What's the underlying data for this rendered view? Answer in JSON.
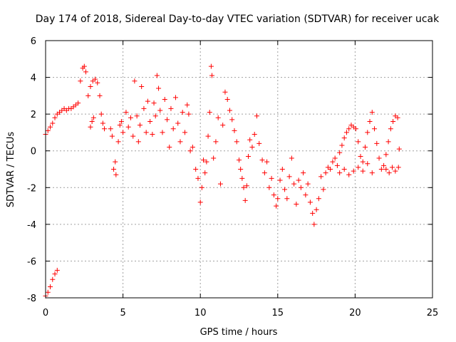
{
  "chart_data": {
    "type": "scatter",
    "title": "Day 174 of 2018, Sidereal Day-to-day VTEC variation (SDTVAR) for receiver ucak",
    "xlabel": "GPS time / hours",
    "ylabel": "SDTVAR / TECUs",
    "xlim": [
      0,
      25
    ],
    "ylim": [
      -8,
      6
    ],
    "xticks": [
      "0",
      "5",
      "10",
      "15",
      "20",
      "25"
    ],
    "yticks": [
      "-8",
      "-6",
      "-4",
      "-2",
      "0",
      "2",
      "4",
      "6"
    ],
    "grid": true,
    "marker": "+",
    "color": "#ff0000",
    "series": [
      {
        "name": "SDTVAR",
        "points": [
          [
            0.0,
            0.9
          ],
          [
            0.15,
            1.1
          ],
          [
            0.3,
            1.3
          ],
          [
            0.45,
            1.5
          ],
          [
            0.6,
            1.8
          ],
          [
            0.75,
            2.0
          ],
          [
            0.9,
            2.1
          ],
          [
            1.05,
            2.2
          ],
          [
            1.2,
            2.3
          ],
          [
            1.35,
            2.2
          ],
          [
            1.5,
            2.3
          ],
          [
            1.65,
            2.3
          ],
          [
            1.8,
            2.4
          ],
          [
            1.95,
            2.5
          ],
          [
            2.1,
            2.6
          ],
          [
            2.25,
            3.8
          ],
          [
            2.4,
            4.5
          ],
          [
            2.5,
            4.6
          ],
          [
            2.6,
            4.3
          ],
          [
            2.75,
            3.0
          ],
          [
            2.9,
            3.5
          ],
          [
            3.05,
            3.8
          ],
          [
            3.2,
            3.9
          ],
          [
            3.35,
            3.7
          ],
          [
            3.5,
            3.0
          ],
          [
            3.6,
            2.0
          ],
          [
            3.7,
            1.5
          ],
          [
            3.8,
            1.2
          ],
          [
            2.9,
            1.3
          ],
          [
            3.0,
            1.6
          ],
          [
            3.1,
            1.8
          ],
          [
            0.0,
            -7.9
          ],
          [
            0.15,
            -7.7
          ],
          [
            0.3,
            -7.4
          ],
          [
            0.45,
            -7.0
          ],
          [
            0.6,
            -6.7
          ],
          [
            0.75,
            -6.5
          ],
          [
            4.2,
            1.2
          ],
          [
            4.3,
            0.8
          ],
          [
            4.4,
            -1.0
          ],
          [
            4.5,
            -0.6
          ],
          [
            4.55,
            -1.3
          ],
          [
            4.7,
            0.5
          ],
          [
            4.8,
            1.4
          ],
          [
            4.9,
            1.6
          ],
          [
            5.0,
            1.0
          ],
          [
            5.2,
            2.1
          ],
          [
            5.35,
            1.3
          ],
          [
            5.5,
            1.8
          ],
          [
            5.65,
            0.8
          ],
          [
            5.75,
            3.8
          ],
          [
            5.9,
            1.9
          ],
          [
            6.0,
            0.5
          ],
          [
            6.1,
            1.4
          ],
          [
            6.2,
            3.5
          ],
          [
            6.35,
            2.3
          ],
          [
            6.5,
            1.0
          ],
          [
            6.6,
            2.7
          ],
          [
            6.75,
            1.6
          ],
          [
            6.9,
            0.9
          ],
          [
            7.0,
            2.6
          ],
          [
            7.1,
            1.9
          ],
          [
            7.2,
            4.1
          ],
          [
            7.3,
            3.4
          ],
          [
            7.4,
            2.2
          ],
          [
            7.55,
            1.0
          ],
          [
            7.7,
            2.8
          ],
          [
            7.85,
            1.7
          ],
          [
            8.0,
            0.2
          ],
          [
            8.1,
            2.3
          ],
          [
            8.25,
            1.2
          ],
          [
            8.4,
            2.9
          ],
          [
            8.55,
            1.5
          ],
          [
            8.7,
            0.5
          ],
          [
            8.85,
            2.1
          ],
          [
            9.0,
            1.0
          ],
          [
            9.15,
            2.5
          ],
          [
            9.25,
            2.0
          ],
          [
            9.35,
            0.0
          ],
          [
            9.5,
            0.2
          ],
          [
            9.7,
            -1.0
          ],
          [
            9.85,
            -1.5
          ],
          [
            10.0,
            -2.8
          ],
          [
            10.1,
            -2.0
          ],
          [
            10.2,
            -0.5
          ],
          [
            10.3,
            -1.2
          ],
          [
            10.4,
            -0.6
          ],
          [
            10.5,
            0.8
          ],
          [
            10.6,
            2.1
          ],
          [
            10.7,
            4.6
          ],
          [
            10.75,
            4.1
          ],
          [
            10.85,
            -0.4
          ],
          [
            11.0,
            0.5
          ],
          [
            11.15,
            1.8
          ],
          [
            11.3,
            -1.8
          ],
          [
            11.45,
            1.4
          ],
          [
            11.6,
            3.2
          ],
          [
            11.75,
            2.8
          ],
          [
            11.9,
            2.2
          ],
          [
            12.05,
            1.7
          ],
          [
            12.2,
            1.1
          ],
          [
            12.35,
            0.5
          ],
          [
            12.5,
            -0.5
          ],
          [
            12.6,
            -1.0
          ],
          [
            12.7,
            -1.5
          ],
          [
            12.8,
            -2.0
          ],
          [
            12.9,
            -2.7
          ],
          [
            13.0,
            -1.9
          ],
          [
            13.1,
            -0.3
          ],
          [
            13.2,
            0.6
          ],
          [
            13.35,
            0.2
          ],
          [
            13.5,
            0.9
          ],
          [
            13.65,
            1.9
          ],
          [
            13.8,
            0.4
          ],
          [
            14.0,
            -0.5
          ],
          [
            14.15,
            -1.2
          ],
          [
            14.3,
            -0.6
          ],
          [
            14.45,
            -2.0
          ],
          [
            14.6,
            -1.5
          ],
          [
            14.75,
            -2.4
          ],
          [
            14.9,
            -3.0
          ],
          [
            15.0,
            -2.6
          ],
          [
            15.15,
            -1.6
          ],
          [
            15.3,
            -1.0
          ],
          [
            15.45,
            -2.1
          ],
          [
            15.6,
            -2.6
          ],
          [
            15.75,
            -1.4
          ],
          [
            15.9,
            -0.4
          ],
          [
            16.05,
            -1.8
          ],
          [
            16.2,
            -2.9
          ],
          [
            16.35,
            -1.6
          ],
          [
            16.5,
            -2.0
          ],
          [
            16.65,
            -1.2
          ],
          [
            16.8,
            -2.4
          ],
          [
            16.95,
            -1.8
          ],
          [
            17.1,
            -2.8
          ],
          [
            17.25,
            -3.4
          ],
          [
            17.35,
            -4.0
          ],
          [
            17.5,
            -3.2
          ],
          [
            17.65,
            -2.6
          ],
          [
            17.8,
            -1.4
          ],
          [
            17.95,
            -2.1
          ],
          [
            18.1,
            -1.2
          ],
          [
            18.25,
            -0.9
          ],
          [
            18.4,
            -1.0
          ],
          [
            18.55,
            -0.6
          ],
          [
            18.7,
            -0.4
          ],
          [
            18.85,
            -0.8
          ],
          [
            19.0,
            -0.1
          ],
          [
            19.15,
            0.3
          ],
          [
            19.3,
            0.7
          ],
          [
            19.45,
            1.0
          ],
          [
            19.6,
            1.2
          ],
          [
            19.75,
            1.4
          ],
          [
            19.9,
            1.3
          ],
          [
            20.05,
            1.2
          ],
          [
            20.2,
            0.5
          ],
          [
            20.35,
            -0.3
          ],
          [
            20.5,
            -0.6
          ],
          [
            20.65,
            0.2
          ],
          [
            20.8,
            1.0
          ],
          [
            20.95,
            1.6
          ],
          [
            21.1,
            2.1
          ],
          [
            21.25,
            1.2
          ],
          [
            21.4,
            0.4
          ],
          [
            21.55,
            -0.4
          ],
          [
            21.7,
            -1.0
          ],
          [
            21.85,
            -0.8
          ],
          [
            22.0,
            -0.2
          ],
          [
            22.15,
            0.5
          ],
          [
            22.3,
            1.2
          ],
          [
            22.45,
            1.6
          ],
          [
            22.6,
            1.9
          ],
          [
            22.75,
            1.8
          ],
          [
            22.85,
            0.1
          ],
          [
            22.0,
            -1.0
          ],
          [
            22.2,
            -1.2
          ],
          [
            22.4,
            -0.9
          ],
          [
            22.6,
            -1.1
          ],
          [
            22.8,
            -0.9
          ],
          [
            19.0,
            -1.2
          ],
          [
            19.3,
            -1.0
          ],
          [
            19.6,
            -1.3
          ],
          [
            19.9,
            -1.1
          ],
          [
            20.2,
            -0.9
          ],
          [
            20.5,
            -1.1
          ],
          [
            20.8,
            -0.7
          ],
          [
            21.1,
            -1.2
          ]
        ]
      }
    ]
  }
}
